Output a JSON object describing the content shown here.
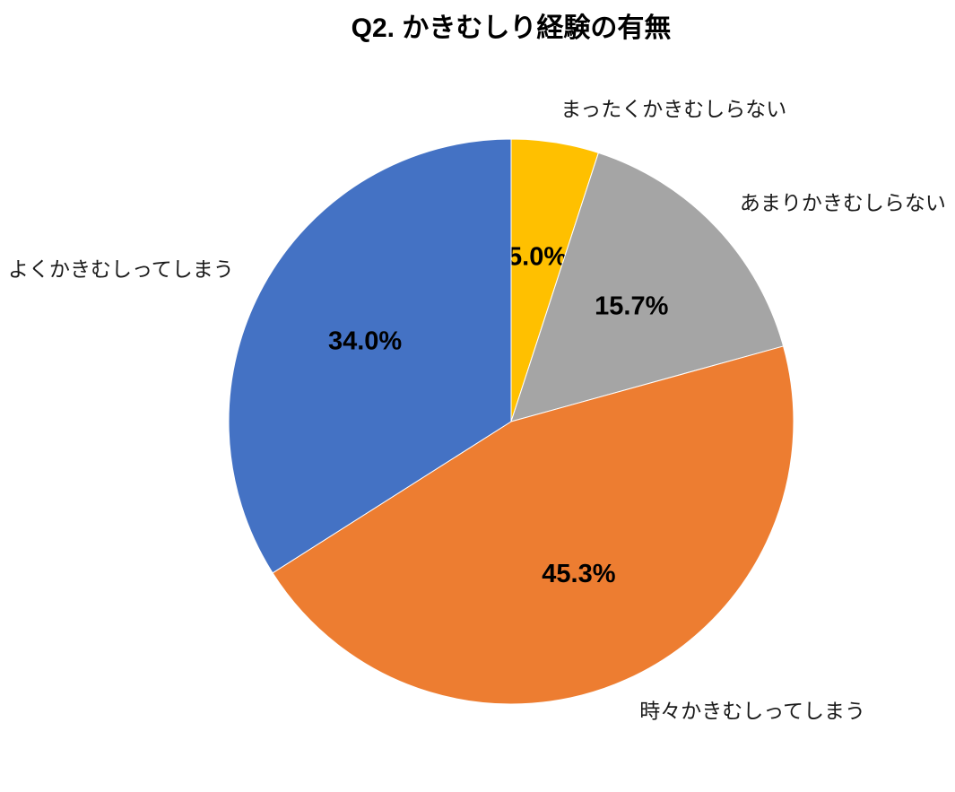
{
  "chart_data": {
    "type": "pie",
    "title": "Q2. かきむしり経験の有無",
    "start_angle_deg": 0,
    "direction": "clockwise",
    "legend_position": "none",
    "labels_outside": true,
    "background_color": "#FFFFFF",
    "text_color": "#000000",
    "slices": [
      {
        "label": "まったくかきむしらない",
        "value": 5.0,
        "percent_label": "5.0%",
        "color": "#FFC000"
      },
      {
        "label": "あまりかきむしらない",
        "value": 15.7,
        "percent_label": "15.7%",
        "color": "#A5A5A5"
      },
      {
        "label": "時々かきむしってしまう",
        "value": 45.3,
        "percent_label": "45.3%",
        "color": "#ED7D31"
      },
      {
        "label": "よくかきむしってしまう",
        "value": 34.0,
        "percent_label": "34.0%",
        "color": "#4472C4"
      }
    ]
  }
}
